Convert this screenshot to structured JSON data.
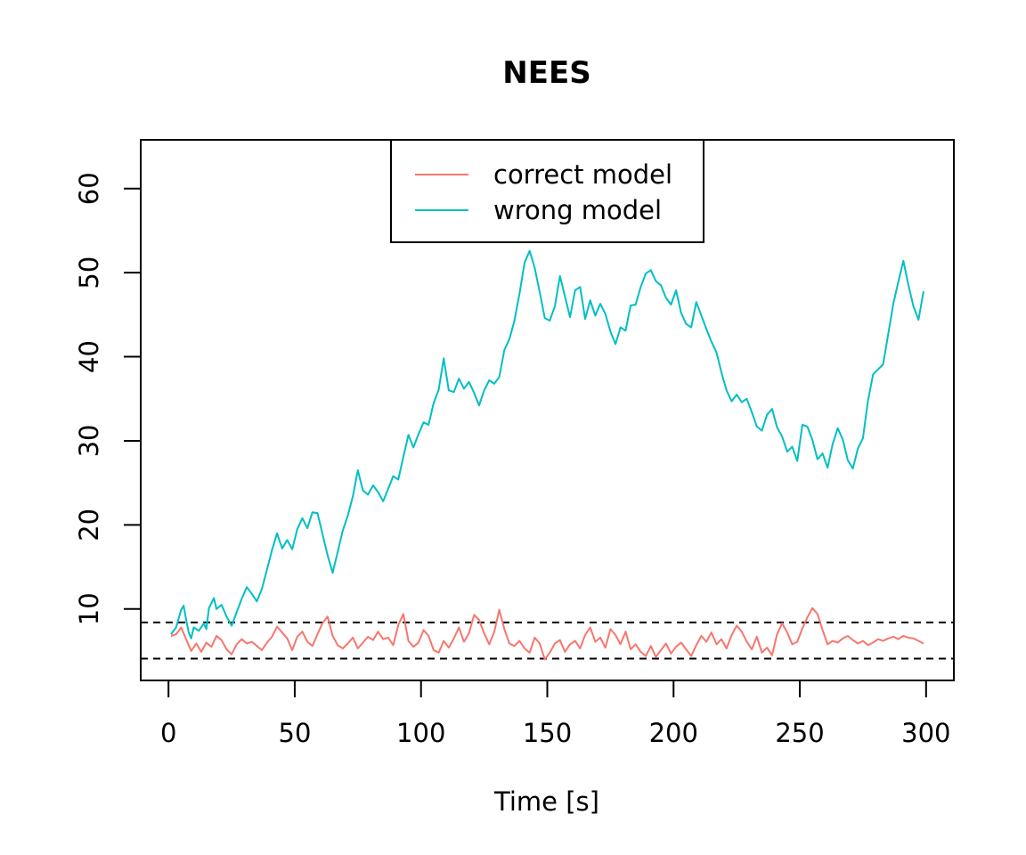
{
  "chart_data": {
    "type": "line",
    "title": "NEES",
    "xlabel": "Time [s]",
    "ylabel": "",
    "xlim": [
      -11,
      311
    ],
    "ylim": [
      1.5,
      65.8
    ],
    "xticks": [
      0,
      50,
      100,
      150,
      200,
      250,
      300
    ],
    "yticks": [
      10,
      20,
      30,
      40,
      50,
      60
    ],
    "grid": false,
    "legend_position": "top-center",
    "reference_lines": [
      {
        "y": 8.4,
        "style": "dashed",
        "color": "#000000"
      },
      {
        "y": 4.1,
        "style": "dashed",
        "color": "#000000"
      }
    ],
    "series": [
      {
        "name": "correct model",
        "color": "#F8766D",
        "points": [
          [
            1,
            6.8
          ],
          [
            3,
            7.0
          ],
          [
            5,
            7.8
          ],
          [
            7,
            6.4
          ],
          [
            9,
            5.0
          ],
          [
            11,
            5.9
          ],
          [
            13,
            4.9
          ],
          [
            15,
            6.0
          ],
          [
            17,
            5.5
          ],
          [
            19,
            6.8
          ],
          [
            21,
            6.3
          ],
          [
            23,
            5.2
          ],
          [
            25,
            4.6
          ],
          [
            27,
            5.8
          ],
          [
            29,
            6.4
          ],
          [
            31,
            5.9
          ],
          [
            33,
            6.1
          ],
          [
            35,
            5.6
          ],
          [
            37,
            5.1
          ],
          [
            39,
            6.0
          ],
          [
            41,
            6.7
          ],
          [
            43,
            7.9
          ],
          [
            45,
            7.2
          ],
          [
            47,
            6.5
          ],
          [
            49,
            5.1
          ],
          [
            51,
            6.7
          ],
          [
            53,
            7.3
          ],
          [
            55,
            6.1
          ],
          [
            57,
            5.6
          ],
          [
            59,
            7.0
          ],
          [
            61,
            8.3
          ],
          [
            63,
            9.1
          ],
          [
            65,
            6.8
          ],
          [
            67,
            5.7
          ],
          [
            69,
            5.3
          ],
          [
            71,
            5.9
          ],
          [
            73,
            6.6
          ],
          [
            75,
            5.3
          ],
          [
            77,
            6.0
          ],
          [
            79,
            6.7
          ],
          [
            81,
            6.3
          ],
          [
            83,
            7.3
          ],
          [
            85,
            6.4
          ],
          [
            87,
            6.6
          ],
          [
            89,
            5.7
          ],
          [
            91,
            8.1
          ],
          [
            93,
            9.4
          ],
          [
            95,
            6.2
          ],
          [
            97,
            5.5
          ],
          [
            99,
            6.0
          ],
          [
            101,
            7.5
          ],
          [
            103,
            6.8
          ],
          [
            105,
            5.1
          ],
          [
            107,
            4.8
          ],
          [
            109,
            6.2
          ],
          [
            111,
            5.4
          ],
          [
            113,
            6.5
          ],
          [
            115,
            7.8
          ],
          [
            117,
            6.1
          ],
          [
            119,
            7.1
          ],
          [
            121,
            9.3
          ],
          [
            123,
            8.7
          ],
          [
            125,
            7.1
          ],
          [
            127,
            5.8
          ],
          [
            129,
            7.3
          ],
          [
            131,
            9.9
          ],
          [
            133,
            7.6
          ],
          [
            135,
            5.9
          ],
          [
            137,
            5.6
          ],
          [
            139,
            6.2
          ],
          [
            141,
            5.3
          ],
          [
            143,
            4.8
          ],
          [
            145,
            6.6
          ],
          [
            147,
            5.9
          ],
          [
            149,
            4.0
          ],
          [
            151,
            4.8
          ],
          [
            153,
            5.9
          ],
          [
            155,
            6.3
          ],
          [
            157,
            4.9
          ],
          [
            159,
            5.8
          ],
          [
            161,
            6.2
          ],
          [
            163,
            5.3
          ],
          [
            165,
            6.9
          ],
          [
            167,
            7.8
          ],
          [
            169,
            6.1
          ],
          [
            171,
            6.6
          ],
          [
            173,
            5.4
          ],
          [
            175,
            7.6
          ],
          [
            177,
            6.9
          ],
          [
            179,
            5.8
          ],
          [
            181,
            7.3
          ],
          [
            183,
            5.2
          ],
          [
            185,
            5.8
          ],
          [
            187,
            4.9
          ],
          [
            189,
            4.4
          ],
          [
            191,
            5.6
          ],
          [
            193,
            4.3
          ],
          [
            195,
            5.1
          ],
          [
            197,
            5.9
          ],
          [
            199,
            4.7
          ],
          [
            201,
            5.5
          ],
          [
            203,
            6.0
          ],
          [
            205,
            5.2
          ],
          [
            207,
            4.4
          ],
          [
            209,
            5.7
          ],
          [
            211,
            6.8
          ],
          [
            213,
            6.1
          ],
          [
            215,
            7.2
          ],
          [
            217,
            5.8
          ],
          [
            219,
            6.4
          ],
          [
            221,
            5.3
          ],
          [
            223,
            6.9
          ],
          [
            225,
            8.0
          ],
          [
            227,
            7.3
          ],
          [
            229,
            6.1
          ],
          [
            231,
            5.2
          ],
          [
            233,
            6.7
          ],
          [
            235,
            4.8
          ],
          [
            237,
            5.4
          ],
          [
            239,
            4.5
          ],
          [
            241,
            7.0
          ],
          [
            243,
            8.3
          ],
          [
            245,
            7.2
          ],
          [
            247,
            5.8
          ],
          [
            249,
            6.1
          ],
          [
            251,
            7.7
          ],
          [
            253,
            9.0
          ],
          [
            255,
            10.1
          ],
          [
            257,
            9.4
          ],
          [
            259,
            7.5
          ],
          [
            261,
            5.8
          ],
          [
            263,
            6.2
          ],
          [
            265,
            6.0
          ],
          [
            267,
            6.5
          ],
          [
            269,
            6.8
          ],
          [
            271,
            6.3
          ],
          [
            273,
            5.9
          ],
          [
            275,
            6.2
          ],
          [
            277,
            5.7
          ],
          [
            279,
            6.0
          ],
          [
            281,
            6.4
          ],
          [
            283,
            6.2
          ],
          [
            285,
            6.5
          ],
          [
            287,
            6.7
          ],
          [
            289,
            6.4
          ],
          [
            291,
            6.8
          ],
          [
            293,
            6.6
          ],
          [
            295,
            6.5
          ],
          [
            297,
            6.2
          ],
          [
            299,
            5.9
          ]
        ]
      },
      {
        "name": "wrong model",
        "color": "#00BFC4",
        "points": [
          [
            1,
            7.0
          ],
          [
            3,
            7.8
          ],
          [
            5,
            9.9
          ],
          [
            6,
            10.4
          ],
          [
            7,
            8.7
          ],
          [
            8,
            7.2
          ],
          [
            9,
            6.5
          ],
          [
            10,
            7.8
          ],
          [
            12,
            7.4
          ],
          [
            14,
            8.3
          ],
          [
            15,
            7.6
          ],
          [
            16,
            10.1
          ],
          [
            18,
            11.3
          ],
          [
            19,
            10.0
          ],
          [
            21,
            10.5
          ],
          [
            23,
            9.1
          ],
          [
            25,
            8.0
          ],
          [
            27,
            9.6
          ],
          [
            29,
            11.2
          ],
          [
            31,
            12.6
          ],
          [
            33,
            11.8
          ],
          [
            35,
            10.9
          ],
          [
            37,
            12.4
          ],
          [
            39,
            14.7
          ],
          [
            41,
            17.0
          ],
          [
            43,
            19.0
          ],
          [
            45,
            17.2
          ],
          [
            47,
            18.2
          ],
          [
            49,
            17.1
          ],
          [
            51,
            19.5
          ],
          [
            53,
            20.8
          ],
          [
            55,
            19.6
          ],
          [
            57,
            21.5
          ],
          [
            59,
            21.4
          ],
          [
            61,
            18.9
          ],
          [
            63,
            16.4
          ],
          [
            65,
            14.3
          ],
          [
            67,
            16.8
          ],
          [
            69,
            19.3
          ],
          [
            71,
            21.1
          ],
          [
            73,
            23.4
          ],
          [
            75,
            26.5
          ],
          [
            77,
            24.1
          ],
          [
            79,
            23.6
          ],
          [
            81,
            24.7
          ],
          [
            83,
            23.9
          ],
          [
            85,
            22.8
          ],
          [
            87,
            24.3
          ],
          [
            89,
            25.8
          ],
          [
            91,
            25.4
          ],
          [
            93,
            28.1
          ],
          [
            95,
            30.7
          ],
          [
            97,
            29.2
          ],
          [
            99,
            30.8
          ],
          [
            101,
            32.2
          ],
          [
            103,
            31.9
          ],
          [
            105,
            34.5
          ],
          [
            107,
            36.1
          ],
          [
            109,
            39.8
          ],
          [
            111,
            36.0
          ],
          [
            113,
            35.8
          ],
          [
            115,
            37.4
          ],
          [
            117,
            36.2
          ],
          [
            119,
            37.0
          ],
          [
            121,
            35.7
          ],
          [
            123,
            34.2
          ],
          [
            125,
            36.0
          ],
          [
            127,
            37.2
          ],
          [
            129,
            36.8
          ],
          [
            131,
            37.6
          ],
          [
            133,
            40.8
          ],
          [
            135,
            42.1
          ],
          [
            137,
            44.3
          ],
          [
            139,
            47.5
          ],
          [
            141,
            51.2
          ],
          [
            143,
            52.6
          ],
          [
            145,
            50.6
          ],
          [
            147,
            47.7
          ],
          [
            149,
            44.6
          ],
          [
            151,
            44.3
          ],
          [
            153,
            46.0
          ],
          [
            155,
            49.6
          ],
          [
            157,
            47.2
          ],
          [
            159,
            44.7
          ],
          [
            161,
            47.9
          ],
          [
            163,
            48.3
          ],
          [
            165,
            44.5
          ],
          [
            167,
            46.7
          ],
          [
            169,
            44.9
          ],
          [
            171,
            46.3
          ],
          [
            173,
            45.1
          ],
          [
            175,
            43.0
          ],
          [
            177,
            41.5
          ],
          [
            179,
            43.5
          ],
          [
            181,
            43.1
          ],
          [
            183,
            46.1
          ],
          [
            185,
            46.2
          ],
          [
            187,
            48.3
          ],
          [
            189,
            49.9
          ],
          [
            191,
            50.3
          ],
          [
            193,
            49.0
          ],
          [
            195,
            48.5
          ],
          [
            197,
            47.0
          ],
          [
            199,
            46.2
          ],
          [
            201,
            47.9
          ],
          [
            203,
            45.2
          ],
          [
            205,
            43.9
          ],
          [
            207,
            43.5
          ],
          [
            209,
            46.5
          ],
          [
            211,
            44.9
          ],
          [
            213,
            43.3
          ],
          [
            215,
            41.8
          ],
          [
            217,
            40.5
          ],
          [
            219,
            38.1
          ],
          [
            221,
            36.0
          ],
          [
            223,
            34.7
          ],
          [
            225,
            35.5
          ],
          [
            227,
            34.6
          ],
          [
            229,
            35.0
          ],
          [
            231,
            33.4
          ],
          [
            233,
            31.7
          ],
          [
            235,
            31.2
          ],
          [
            237,
            33.1
          ],
          [
            239,
            33.8
          ],
          [
            241,
            31.6
          ],
          [
            243,
            30.5
          ],
          [
            245,
            28.7
          ],
          [
            247,
            29.3
          ],
          [
            249,
            27.6
          ],
          [
            251,
            31.9
          ],
          [
            253,
            31.7
          ],
          [
            255,
            30.1
          ],
          [
            257,
            27.8
          ],
          [
            259,
            28.5
          ],
          [
            261,
            26.8
          ],
          [
            263,
            29.6
          ],
          [
            265,
            31.5
          ],
          [
            267,
            30.2
          ],
          [
            269,
            27.7
          ],
          [
            271,
            26.7
          ],
          [
            273,
            29.1
          ],
          [
            275,
            30.3
          ],
          [
            277,
            34.8
          ],
          [
            279,
            37.9
          ],
          [
            281,
            38.5
          ],
          [
            283,
            39.1
          ],
          [
            285,
            42.7
          ],
          [
            287,
            46.3
          ],
          [
            289,
            48.9
          ],
          [
            291,
            51.4
          ],
          [
            293,
            48.5
          ],
          [
            295,
            46.0
          ],
          [
            297,
            44.4
          ],
          [
            299,
            47.8
          ]
        ]
      }
    ]
  }
}
